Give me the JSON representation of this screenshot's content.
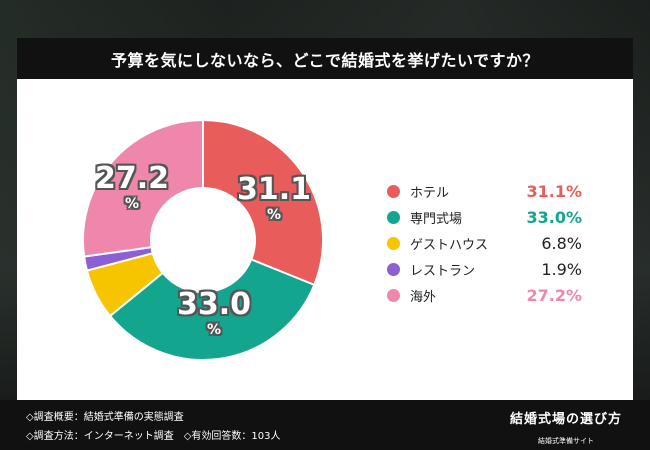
{
  "title": "予算を気にしないなら、どこで結婚式を挙げたいですか？",
  "chart_data": {
    "type": "pie",
    "title": "予算を気にしないなら、どこで結婚式を挙げたいですか？",
    "series": [
      {
        "name": "ホテル",
        "value": 31.1,
        "value_label": "31.1%",
        "color": "#e85d5b",
        "highlight": true
      },
      {
        "name": "専門式場",
        "value": 33.0,
        "value_label": "33.0%",
        "color": "#13a58e",
        "highlight": true
      },
      {
        "name": "ゲストハウス",
        "value": 6.8,
        "value_label": "6.8%",
        "color": "#f7c500",
        "highlight": false
      },
      {
        "name": "レストラン",
        "value": 1.9,
        "value_label": "1.9%",
        "color": "#8b5fd6",
        "highlight": false
      },
      {
        "name": "海外",
        "value": 27.2,
        "value_label": "27.2%",
        "color": "#ef87ac",
        "highlight": true
      }
    ],
    "donut_labels": [
      {
        "num": "31.1",
        "unit": "%"
      },
      {
        "num": "33.0",
        "unit": "%"
      },
      {
        "num": "27.2",
        "unit": "%"
      }
    ],
    "legend_placement": "right",
    "hole": true
  },
  "footer": {
    "note1": "◇調査概要：結婚式準備の実態調査",
    "note2": "◇調査方法：インターネット調査　◇有効回答数：103人",
    "brand_name": "結婚式場の選び方",
    "brand_sub": "結婚式準備サイト"
  }
}
